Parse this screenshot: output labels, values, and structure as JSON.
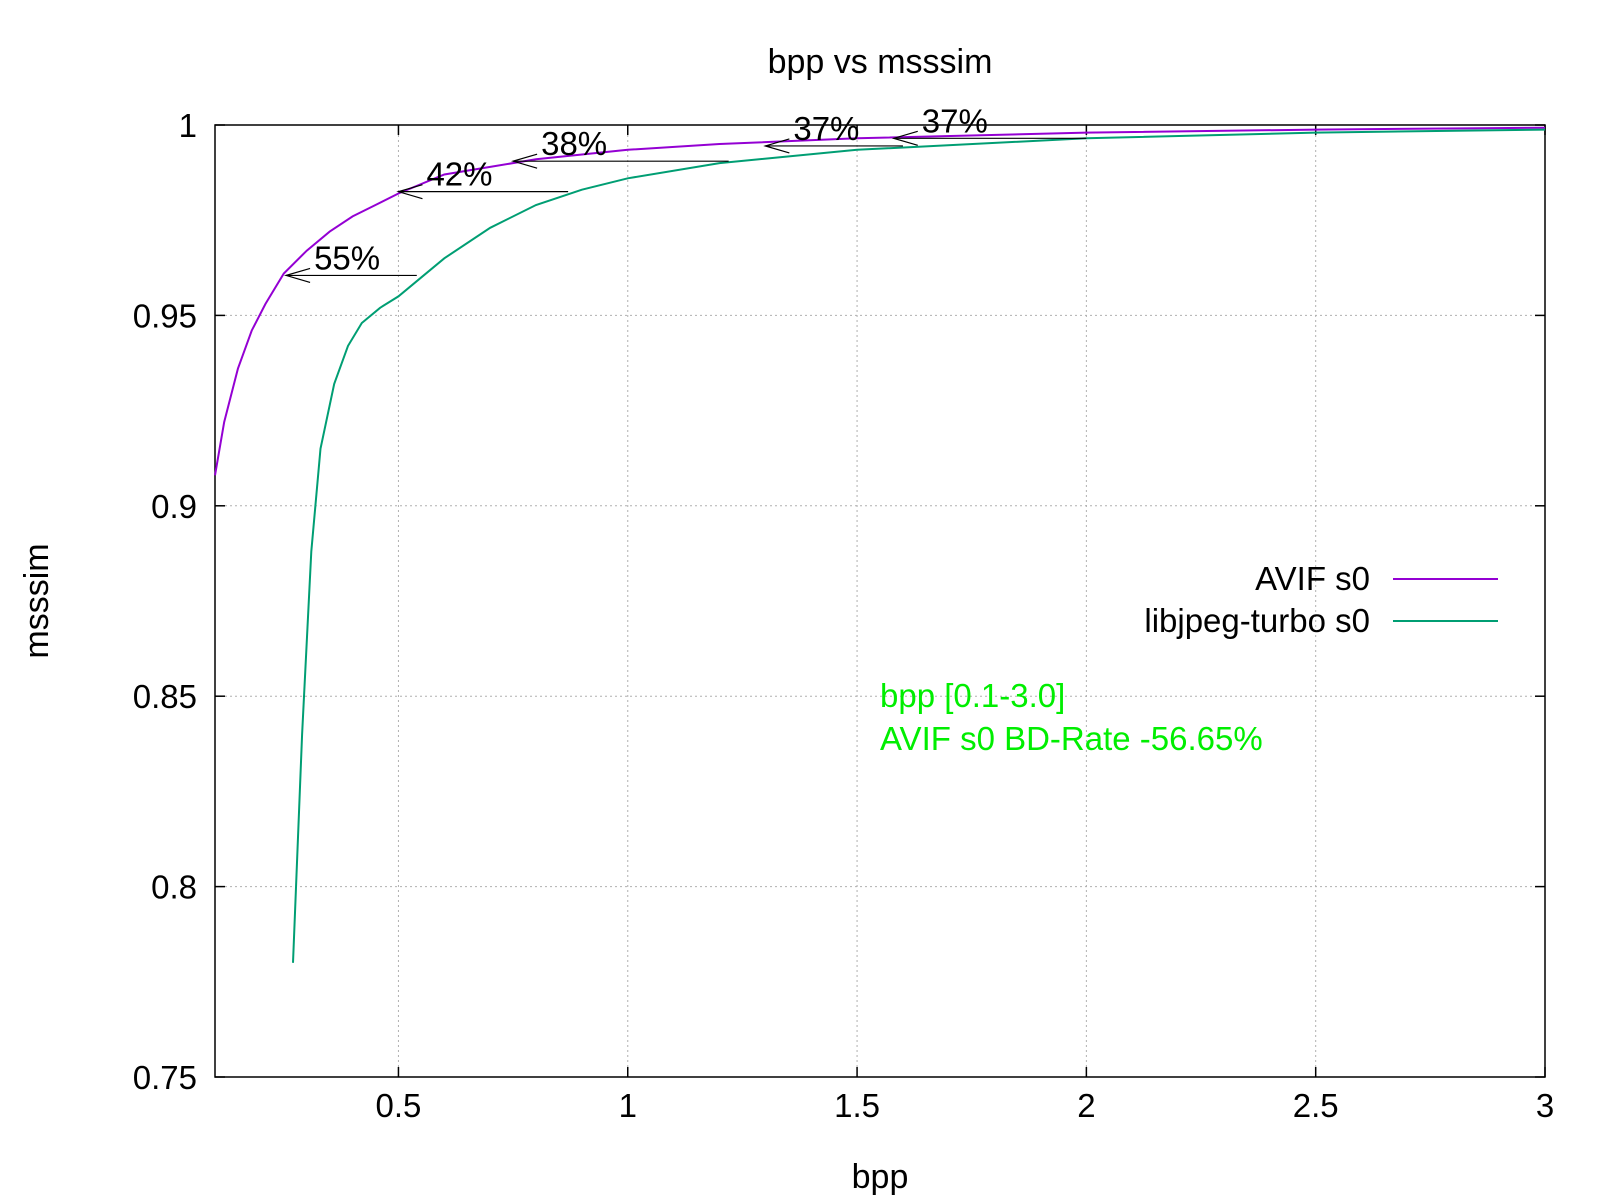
{
  "chart_data": {
    "type": "line",
    "title": "bpp vs msssim",
    "xlabel": "bpp",
    "ylabel": "msssim",
    "xlim": [
      0.1,
      3.0
    ],
    "ylim": [
      0.75,
      1.0
    ],
    "x_ticks": [
      0.5,
      1,
      1.5,
      2,
      2.5,
      3
    ],
    "x_tick_labels": [
      "0.5",
      "1",
      "1.5",
      "2",
      "2.5",
      "3"
    ],
    "y_ticks": [
      0.75,
      0.8,
      0.85,
      0.9,
      0.95,
      1.0
    ],
    "y_tick_labels": [
      "0.75",
      "0.8",
      "0.85",
      "0.9",
      "0.95",
      "1"
    ],
    "grid": true,
    "legend_position": "right",
    "series": [
      {
        "name": "AVIF s0",
        "color": "#9400d3",
        "x": [
          0.1,
          0.12,
          0.15,
          0.18,
          0.21,
          0.25,
          0.3,
          0.35,
          0.4,
          0.45,
          0.5,
          0.6,
          0.7,
          0.8,
          1.0,
          1.2,
          1.5,
          2.0,
          2.5,
          3.0
        ],
        "y": [
          0.908,
          0.922,
          0.936,
          0.946,
          0.953,
          0.961,
          0.967,
          0.972,
          0.976,
          0.979,
          0.982,
          0.987,
          0.989,
          0.991,
          0.9935,
          0.995,
          0.9965,
          0.998,
          0.9988,
          0.9993
        ]
      },
      {
        "name": "libjpeg-turbo s0",
        "color": "#009e73",
        "x": [
          0.27,
          0.29,
          0.31,
          0.33,
          0.36,
          0.39,
          0.42,
          0.46,
          0.5,
          0.55,
          0.6,
          0.7,
          0.8,
          0.9,
          1.0,
          1.2,
          1.5,
          2.0,
          2.5,
          3.0
        ],
        "y": [
          0.78,
          0.84,
          0.888,
          0.915,
          0.932,
          0.942,
          0.948,
          0.952,
          0.955,
          0.96,
          0.965,
          0.973,
          0.979,
          0.983,
          0.986,
          0.99,
          0.9935,
          0.9965,
          0.998,
          0.9988
        ]
      }
    ],
    "annotations": [
      {
        "label": "55%",
        "x_from": 0.54,
        "x_to": 0.255,
        "y": 0.9605
      },
      {
        "label": "42%",
        "x_from": 0.87,
        "x_to": 0.5,
        "y": 0.9825
      },
      {
        "label": "38%",
        "x_from": 1.22,
        "x_to": 0.75,
        "y": 0.9905
      },
      {
        "label": "37%",
        "x_from": 1.6,
        "x_to": 1.3,
        "y": 0.9945
      },
      {
        "label": "37%",
        "x_from": 2.0,
        "x_to": 1.58,
        "y": 0.9965
      }
    ],
    "info_text": [
      "bpp [0.1-3.0]",
      "AVIF s0 BD-Rate -56.65%"
    ]
  }
}
